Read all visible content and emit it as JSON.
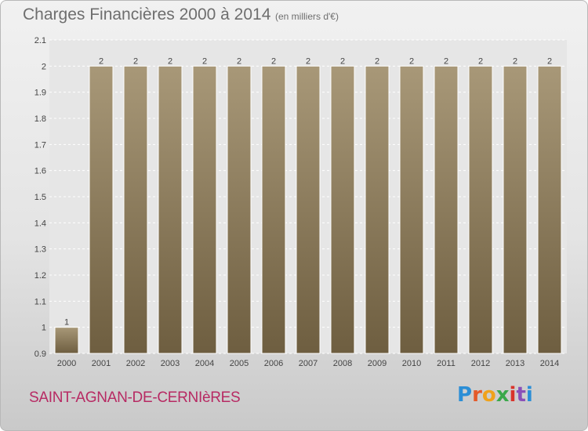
{
  "chart_data": {
    "type": "bar",
    "title": "Charges Financières 2000 à 2014",
    "subtitle": "(en milliers d'€)",
    "xlabel": "",
    "ylabel": "",
    "categories": [
      "2000",
      "2001",
      "2002",
      "2003",
      "2004",
      "2005",
      "2006",
      "2007",
      "2008",
      "2009",
      "2010",
      "2011",
      "2012",
      "2013",
      "2014"
    ],
    "values": [
      1,
      2,
      2,
      2,
      2,
      2,
      2,
      2,
      2,
      2,
      2,
      2,
      2,
      2,
      2
    ],
    "data_labels": [
      "1",
      "2",
      "2",
      "2",
      "2",
      "2",
      "2",
      "2",
      "2",
      "2",
      "2",
      "2",
      "2",
      "2",
      "2"
    ],
    "ylim": [
      0.9,
      2.1
    ],
    "yticks": [
      0.9,
      1,
      1.1,
      1.2,
      1.3,
      1.4,
      1.5,
      1.6,
      1.7,
      1.8,
      1.9,
      2,
      2.1
    ],
    "ytick_labels": [
      "0.9",
      "1",
      "1.1",
      "1.2",
      "1.3",
      "1.4",
      "1.5",
      "1.6",
      "1.7",
      "1.8",
      "1.9",
      "2",
      "2.1"
    ],
    "grid": true,
    "legend": "none",
    "colors": {
      "bar_light": "#a89878",
      "bar_dark": "#6e5e40",
      "grid": "#ffffff",
      "axis_text": "#444444"
    }
  },
  "footer": {
    "commune": "SAINT-AGNAN-DE-CERNIèRES",
    "brand": "Proxiti",
    "brand_colors": [
      "#2b8ed6",
      "#e45a2a",
      "#f0a21b",
      "#3aa84a",
      "#d9342b",
      "#8a4fb8",
      "#2b8ed6"
    ]
  }
}
